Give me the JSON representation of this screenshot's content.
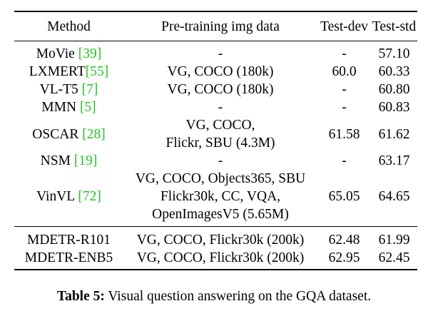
{
  "table": {
    "headers": [
      "Method",
      "Pre-training img data",
      "Test-dev",
      "Test-std"
    ],
    "rows": [
      {
        "method": "MoVie ",
        "cite": "[39]",
        "data": [
          "-"
        ],
        "dev": "-",
        "std": "57.10"
      },
      {
        "method": "LXMERT",
        "cite": "[55]",
        "data": [
          "VG, COCO (180k)"
        ],
        "dev": "60.0",
        "std": "60.33"
      },
      {
        "method": "VL-T5 ",
        "cite": "[7]",
        "data": [
          "VG, COCO (180k)"
        ],
        "dev": "-",
        "std": "60.80"
      },
      {
        "method": "MMN ",
        "cite": "[5]",
        "data": [
          "-"
        ],
        "dev": "-",
        "std": "60.83"
      },
      {
        "method": "OSCAR ",
        "cite": "[28]",
        "data": [
          "VG, COCO,",
          "Flickr, SBU (4.3M)"
        ],
        "dev": "61.58",
        "std": "61.62"
      },
      {
        "method": "NSM ",
        "cite": "[19]",
        "data": [
          "-"
        ],
        "dev": "-",
        "std": "63.17"
      },
      {
        "method": "VinVL ",
        "cite": "[72]",
        "data": [
          "VG, COCO, Objects365, SBU",
          "Flickr30k, CC, VQA,",
          "OpenImagesV5 (5.65M)"
        ],
        "dev": "65.05",
        "std": "64.65"
      }
    ],
    "mdetr_rows": [
      {
        "method": "MDETR-R101",
        "data": "VG, COCO, Flickr30k (200k)",
        "dev": "62.48",
        "std": "61.99"
      },
      {
        "method": "MDETR-ENB5",
        "data": "VG, COCO, Flickr30k (200k)",
        "dev": "62.95",
        "std": "62.45"
      }
    ]
  },
  "caption": {
    "label": "Table 5:",
    "text": " Visual question answering on the GQA dataset."
  }
}
